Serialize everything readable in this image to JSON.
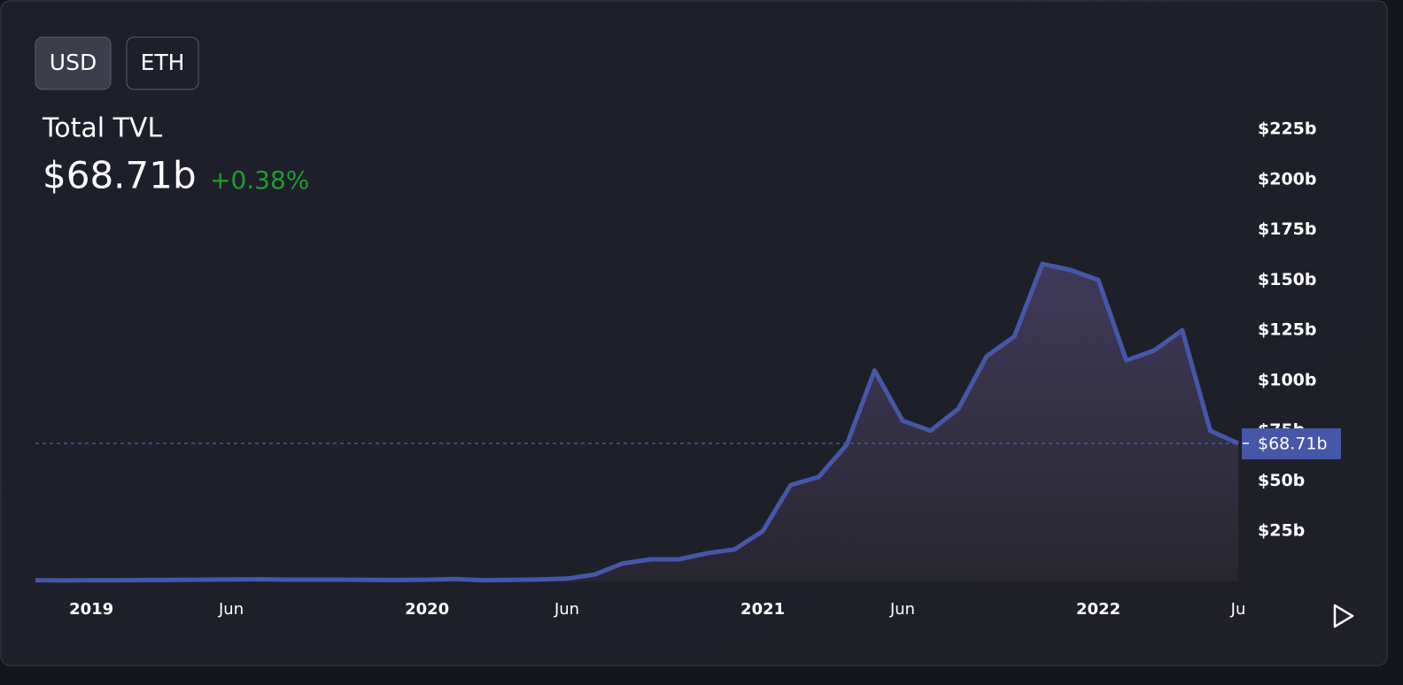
{
  "buttons": [
    "USD",
    "ETH"
  ],
  "header": {
    "title": "Total TVL",
    "value": "$68.71b",
    "change": "+0.38%"
  },
  "chart_data": {
    "type": "line",
    "x": [
      "2018-11",
      "2018-12",
      "2019-01",
      "2019-02",
      "2019-03",
      "2019-04",
      "2019-05",
      "2019-06",
      "2019-07",
      "2019-08",
      "2019-09",
      "2019-10",
      "2019-11",
      "2019-12",
      "2020-01",
      "2020-02",
      "2020-03",
      "2020-04",
      "2020-05",
      "2020-06",
      "2020-07",
      "2020-08",
      "2020-09",
      "2020-10",
      "2020-11",
      "2020-12",
      "2021-01",
      "2021-02",
      "2021-03",
      "2021-04",
      "2021-05",
      "2021-06",
      "2021-07",
      "2021-08",
      "2021-09",
      "2021-10",
      "2021-11",
      "2021-12",
      "2022-01",
      "2022-02",
      "2022-03",
      "2022-04",
      "2022-05",
      "2022-06"
    ],
    "series": [
      {
        "name": "Total TVL",
        "color": "#4657a8",
        "values": [
          0.6,
          0.5,
          0.6,
          0.6,
          0.7,
          0.8,
          0.9,
          1.0,
          1.1,
          0.9,
          0.9,
          0.9,
          0.8,
          0.7,
          0.9,
          1.2,
          0.6,
          0.8,
          1.0,
          1.4,
          3.5,
          9,
          11,
          11,
          14,
          16,
          25,
          48,
          52,
          68,
          105,
          80,
          75,
          86,
          112,
          122,
          158,
          155,
          150,
          110,
          115,
          125,
          75,
          68.71
        ]
      }
    ],
    "xlim": [
      "2018-11",
      "2022-06"
    ],
    "xticks": [
      {
        "value": "2019-01",
        "label": "2019"
      },
      {
        "value": "2019-06",
        "label": "Jun"
      },
      {
        "value": "2020-01",
        "label": "2020"
      },
      {
        "value": "2020-06",
        "label": "Jun"
      },
      {
        "value": "2021-01",
        "label": "2021"
      },
      {
        "value": "2021-06",
        "label": "Jun"
      },
      {
        "value": "2022-01",
        "label": "2022"
      },
      {
        "value": "2022-06",
        "label": "Ju"
      }
    ],
    "ylim": [
      0,
      240
    ],
    "yticks": [
      {
        "value": 25,
        "label": "$25b"
      },
      {
        "value": 50,
        "label": "$50b"
      },
      {
        "value": 75,
        "label": "$75b"
      },
      {
        "value": 100,
        "label": "$100b"
      },
      {
        "value": 125,
        "label": "$125b"
      },
      {
        "value": 150,
        "label": "$150b"
      },
      {
        "value": 175,
        "label": "$175b"
      },
      {
        "value": 200,
        "label": "$200b"
      },
      {
        "value": 225,
        "label": "$225b"
      }
    ],
    "current": {
      "value": 68.71,
      "label": "$68.71b"
    },
    "grid": false
  }
}
